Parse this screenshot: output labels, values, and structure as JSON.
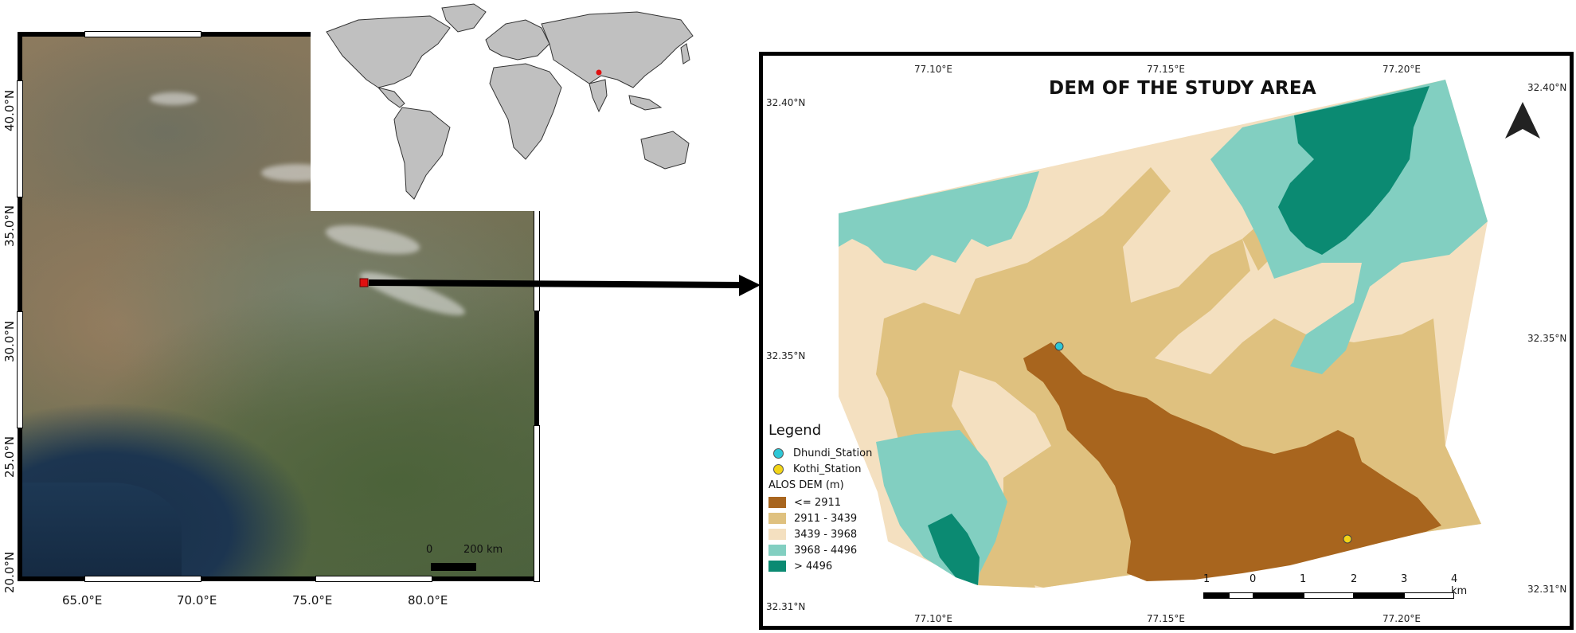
{
  "overview": {
    "lon_ticks": [
      "65.0°E",
      "70.0°E",
      "75.0°E",
      "80.0°E"
    ],
    "lat_ticks": [
      "20.0°N",
      "25.0°N",
      "30.0°N",
      "35.0°N",
      "40.0°N"
    ],
    "scale": {
      "zero": "0",
      "length": "200 km"
    },
    "inset": "world-map"
  },
  "dem_map": {
    "title": "DEM OF THE STUDY AREA",
    "top_lon_ticks": [
      "77.10°E",
      "77.15°E",
      "77.20°E"
    ],
    "bottom_lon_ticks": [
      "77.10°E",
      "77.15°E",
      "77.20°E"
    ],
    "left_lat_ticks": [
      "32.40°N",
      "32.35°N",
      "32.31°N"
    ],
    "right_lat_ticks": [
      "32.40°N",
      "32.35°N",
      "32.31°N"
    ],
    "legend": {
      "title": "Legend",
      "stations": [
        {
          "label": "Dhundi_Station",
          "color": "#2ec7d6"
        },
        {
          "label": "Kothi_Station",
          "color": "#f2d417"
        }
      ],
      "raster_title": "ALOS DEM (m)",
      "classes": [
        {
          "label": "<= 2911",
          "color": "#a8651e"
        },
        {
          "label": "2911 - 3439",
          "color": "#dfc17f"
        },
        {
          "label": "3439 - 3968",
          "color": "#f4e0c0"
        },
        {
          "label": "3968 - 4496",
          "color": "#82cfc1"
        },
        {
          "label": "> 4496",
          "color": "#0b8a72"
        }
      ]
    },
    "scalebar": {
      "labels": [
        "1",
        "0",
        "1",
        "2",
        "3",
        "4 km"
      ]
    },
    "north_arrow": "north-arrow-icon"
  }
}
